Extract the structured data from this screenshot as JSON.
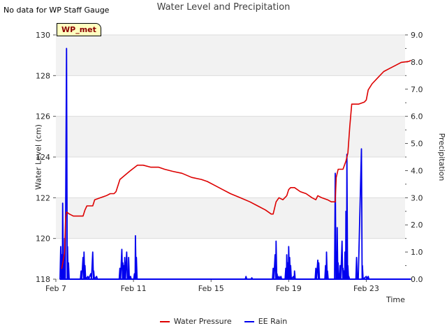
{
  "chart_data": {
    "type": "line",
    "title": "Water Level and Precipitation",
    "note": "No data for WP Staff Gauge",
    "site_label": "WP_met",
    "xlabel": "Time",
    "ylabel_left": "Water Level (cm)",
    "ylabel_right": "Precipitation",
    "x_ticks": [
      "Feb 7",
      "Feb 11",
      "Feb 15",
      "Feb 19",
      "Feb 23"
    ],
    "x_tick_days": [
      7,
      11,
      15,
      19,
      23
    ],
    "xlim": [
      7,
      25
    ],
    "ylim_left": [
      118,
      130
    ],
    "y_ticks_left": [
      118,
      120,
      122,
      124,
      126,
      128,
      130
    ],
    "ylim_right": [
      0,
      9
    ],
    "y_ticks_right": [
      "0.0",
      "1.0",
      "2.0",
      "3.0",
      "4.0",
      "5.0",
      "6.0",
      "7.0",
      "8.0",
      "9.0"
    ],
    "series": [
      {
        "name": "Water Pressure",
        "color": "#dd0000",
        "axis": "left",
        "points": [
          [
            7.3,
            118.5
          ],
          [
            7.45,
            119.3
          ],
          [
            7.5,
            121.0
          ],
          [
            7.55,
            121.3
          ],
          [
            7.7,
            121.2
          ],
          [
            7.9,
            121.1
          ],
          [
            8.4,
            121.1
          ],
          [
            8.5,
            121.4
          ],
          [
            8.6,
            121.6
          ],
          [
            8.9,
            121.6
          ],
          [
            9.0,
            121.9
          ],
          [
            9.3,
            122.0
          ],
          [
            9.6,
            122.1
          ],
          [
            9.8,
            122.2
          ],
          [
            10.0,
            122.2
          ],
          [
            10.1,
            122.3
          ],
          [
            10.3,
            122.9
          ],
          [
            10.8,
            123.3
          ],
          [
            11.2,
            123.6
          ],
          [
            11.5,
            123.6
          ],
          [
            11.9,
            123.5
          ],
          [
            12.3,
            123.5
          ],
          [
            12.6,
            123.4
          ],
          [
            13.0,
            123.3
          ],
          [
            13.5,
            123.2
          ],
          [
            14.0,
            123.0
          ],
          [
            14.5,
            122.9
          ],
          [
            14.8,
            122.8
          ],
          [
            15.2,
            122.6
          ],
          [
            15.6,
            122.4
          ],
          [
            16.0,
            122.2
          ],
          [
            16.5,
            122.0
          ],
          [
            17.0,
            121.8
          ],
          [
            17.4,
            121.6
          ],
          [
            17.8,
            121.4
          ],
          [
            18.1,
            121.2
          ],
          [
            18.2,
            121.2
          ],
          [
            18.35,
            121.8
          ],
          [
            18.5,
            122.0
          ],
          [
            18.7,
            121.9
          ],
          [
            18.9,
            122.1
          ],
          [
            19.0,
            122.4
          ],
          [
            19.1,
            122.5
          ],
          [
            19.3,
            122.5
          ],
          [
            19.6,
            122.3
          ],
          [
            19.9,
            122.2
          ],
          [
            20.2,
            122.0
          ],
          [
            20.4,
            121.9
          ],
          [
            20.5,
            122.1
          ],
          [
            20.7,
            122.0
          ],
          [
            21.0,
            121.9
          ],
          [
            21.2,
            121.8
          ],
          [
            21.4,
            121.8
          ],
          [
            21.45,
            123.0
          ],
          [
            21.55,
            123.4
          ],
          [
            21.8,
            123.4
          ],
          [
            21.95,
            123.8
          ],
          [
            22.05,
            124.2
          ],
          [
            22.15,
            125.5
          ],
          [
            22.25,
            126.6
          ],
          [
            22.6,
            126.6
          ],
          [
            22.9,
            126.7
          ],
          [
            23.0,
            126.8
          ],
          [
            23.1,
            127.3
          ],
          [
            23.3,
            127.6
          ],
          [
            23.6,
            127.9
          ],
          [
            23.9,
            128.2
          ],
          [
            24.2,
            128.35
          ],
          [
            24.5,
            128.5
          ],
          [
            24.8,
            128.65
          ],
          [
            25.2,
            128.7
          ],
          [
            25.3,
            128.75
          ]
        ]
      },
      {
        "name": "EE Rain",
        "color": "#0000ee",
        "axis": "right",
        "spikes": [
          [
            7.25,
            1.2
          ],
          [
            7.3,
            0.9
          ],
          [
            7.35,
            2.8
          ],
          [
            7.4,
            0.1
          ],
          [
            7.45,
            1.5
          ],
          [
            7.55,
            8.5
          ],
          [
            7.6,
            1.2
          ],
          [
            7.65,
            0.6
          ],
          [
            8.3,
            0.3
          ],
          [
            8.4,
            0.8
          ],
          [
            8.45,
            1.0
          ],
          [
            8.5,
            0.5
          ],
          [
            8.65,
            0.1
          ],
          [
            8.8,
            0.2
          ],
          [
            8.9,
            1.0
          ],
          [
            8.95,
            0.3
          ],
          [
            9.1,
            0.1
          ],
          [
            10.3,
            0.4
          ],
          [
            10.4,
            1.1
          ],
          [
            10.45,
            0.6
          ],
          [
            10.5,
            0.5
          ],
          [
            10.55,
            0.8
          ],
          [
            10.65,
            1.0
          ],
          [
            10.7,
            0.2
          ],
          [
            10.75,
            0.8
          ],
          [
            10.85,
            0.1
          ],
          [
            11.05,
            0.2
          ],
          [
            11.1,
            1.6
          ],
          [
            11.15,
            0.8
          ],
          [
            16.8,
            0.1
          ],
          [
            17.1,
            0.05
          ],
          [
            18.2,
            0.4
          ],
          [
            18.3,
            0.9
          ],
          [
            18.35,
            1.4
          ],
          [
            18.4,
            0.2
          ],
          [
            18.5,
            0.1
          ],
          [
            18.6,
            0.1
          ],
          [
            18.85,
            0.4
          ],
          [
            18.9,
            0.9
          ],
          [
            18.95,
            0.6
          ],
          [
            19.0,
            1.2
          ],
          [
            19.05,
            0.8
          ],
          [
            19.1,
            0.5
          ],
          [
            19.25,
            0.1
          ],
          [
            19.3,
            0.3
          ],
          [
            20.4,
            0.4
          ],
          [
            20.5,
            0.7
          ],
          [
            20.55,
            0.6
          ],
          [
            20.9,
            0.5
          ],
          [
            20.95,
            1.0
          ],
          [
            21.0,
            0.3
          ],
          [
            21.4,
            3.9
          ],
          [
            21.45,
            1.0
          ],
          [
            21.5,
            1.9
          ],
          [
            21.55,
            0.6
          ],
          [
            21.6,
            0.2
          ],
          [
            21.65,
            0.5
          ],
          [
            21.75,
            1.4
          ],
          [
            21.8,
            0.4
          ],
          [
            21.85,
            0.3
          ],
          [
            21.9,
            1.0
          ],
          [
            21.95,
            2.5
          ],
          [
            22.0,
            4.6
          ],
          [
            22.05,
            0.5
          ],
          [
            22.1,
            0.1
          ],
          [
            22.5,
            0.8
          ],
          [
            22.55,
            0.1
          ],
          [
            22.75,
            4.8
          ],
          [
            22.8,
            0.5
          ],
          [
            23.0,
            0.1
          ],
          [
            23.1,
            0.1
          ]
        ]
      }
    ],
    "legend": [
      "Water Pressure",
      "EE Rain"
    ],
    "legend_position": "bottom-center",
    "grid": true
  }
}
